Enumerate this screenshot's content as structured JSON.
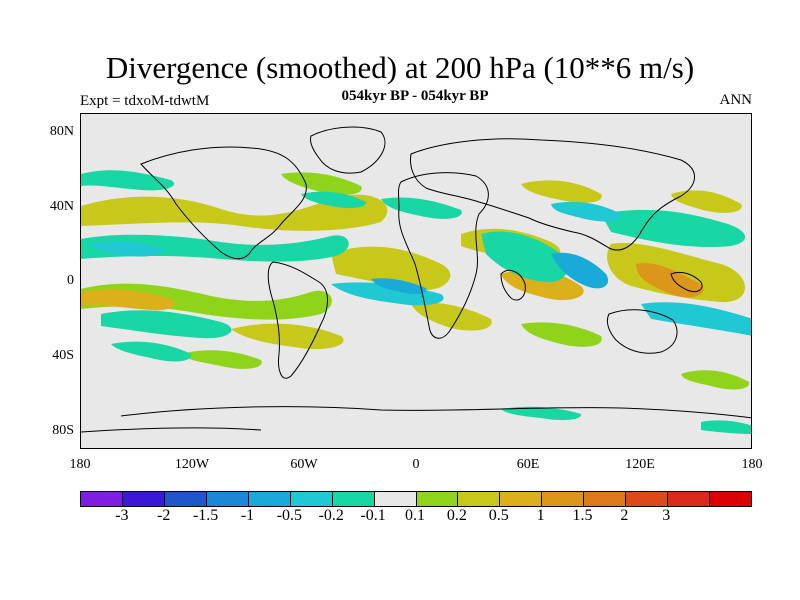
{
  "title": "Divergence (smoothed) at 200 hPa (10**6 m/s)",
  "subtitle": "054kyr BP - 054kyr BP",
  "experiment": "Expt = tdxoM-tdwtM",
  "season": "ANN",
  "lat_labels": [
    "80N",
    "40N",
    "0",
    "40S",
    "80S"
  ],
  "lon_labels": [
    "180",
    "120W",
    "60W",
    "0",
    "60E",
    "120E",
    "180"
  ],
  "colorbar": {
    "colors": [
      "#7d1ee0",
      "#3a18d6",
      "#1f56c9",
      "#1a88d6",
      "#19aad8",
      "#1fc8d2",
      "#19d6a5",
      "#e8e8e8",
      "#8fd41a",
      "#c8c81a",
      "#dcb01a",
      "#dc961a",
      "#dc7a1a",
      "#dc4a1a",
      "#dc2a1a",
      "#dc0000"
    ],
    "labels": [
      "-3",
      "-2",
      "-1.5",
      "-1",
      "-0.5",
      "-0.2",
      "-0.1",
      "0.1",
      "0.2",
      "0.5",
      "1",
      "1.5",
      "2",
      "3"
    ]
  },
  "map_blobs": {
    "positive_color": "#c8c81a",
    "positive_strong_color": "#dcb01a",
    "negative_color": "#19d6a5",
    "negative_strong_color": "#19aad8"
  }
}
